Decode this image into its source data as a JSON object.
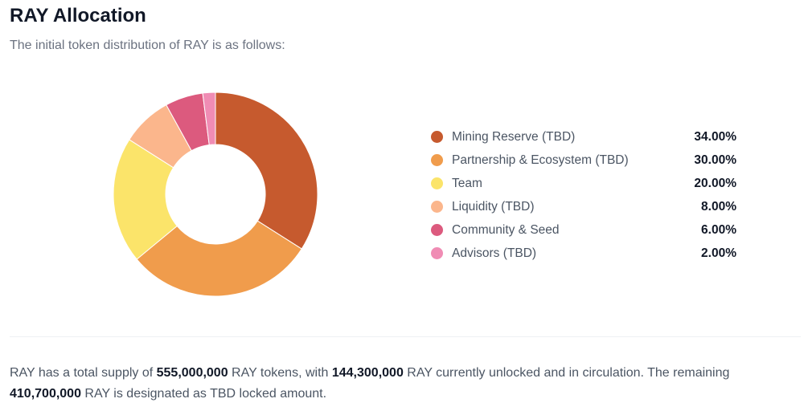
{
  "header": {
    "title": "RAY Allocation",
    "subtitle": "The initial token distribution of RAY is as follows:"
  },
  "chart_data": {
    "type": "pie",
    "variant": "donut",
    "categories": [
      "Mining Reserve (TBD)",
      "Partnership & Ecosystem (TBD)",
      "Team",
      "Liquidity (TBD)",
      "Community & Seed",
      "Advisors (TBD)"
    ],
    "values": [
      34,
      30,
      20,
      8,
      6,
      2
    ],
    "labels": [
      "34.00%",
      "30.00%",
      "20.00%",
      "8.00%",
      "6.00%",
      "2.00%"
    ],
    "colors": [
      "#c65a2e",
      "#f09c4c",
      "#fbe46a",
      "#fbb68c",
      "#dc5a7e",
      "#f08cb4"
    ],
    "legend": "right"
  },
  "footer": {
    "t1": "RAY has a total supply of ",
    "supply": "555,000,000",
    "t2": " RAY tokens, with ",
    "unlocked": "144,300,000",
    "t3": " RAY currently unlocked and in circulation. The remaining ",
    "locked": "410,700,000",
    "t4": " RAY is designated as TBD locked amount."
  }
}
